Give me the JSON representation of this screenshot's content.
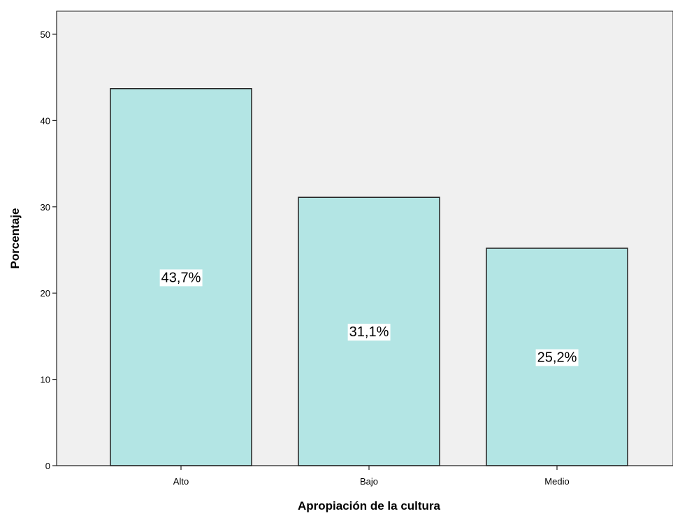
{
  "chart_data": {
    "type": "bar",
    "title": "",
    "xlabel": "Apropiación de la cultura",
    "ylabel": "Porcentaje",
    "categories": [
      "Alto",
      "Bajo",
      "Medio"
    ],
    "values": [
      43.7,
      31.1,
      25.2
    ],
    "data_labels": [
      "43,7%",
      "31,1%",
      "25,2%"
    ],
    "ylim": [
      0,
      50
    ],
    "yticks": [
      0,
      10,
      20,
      30,
      40,
      50
    ],
    "grid": false,
    "legend": "none",
    "colors": {
      "plot_background": "#f0f0f0",
      "bar_fill": "#b3e5e4",
      "bar_stroke": "#222222",
      "axis": "#222222"
    }
  }
}
